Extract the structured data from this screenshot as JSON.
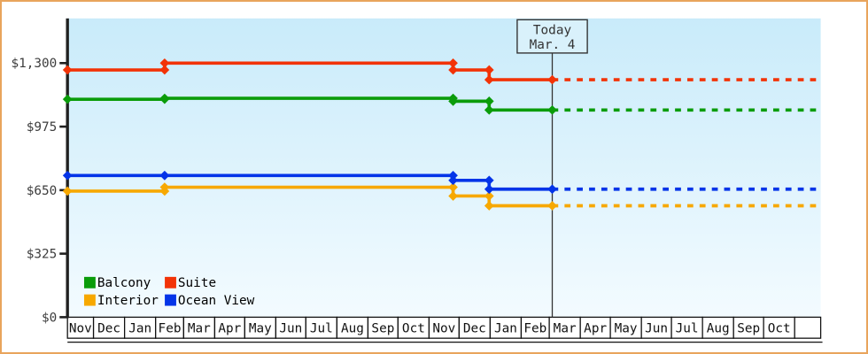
{
  "chart_data": {
    "type": "line",
    "description": "Cruise cabin price history by category with forecast after today",
    "currency": "$",
    "y_axis": {
      "tick_values": [
        0,
        325,
        650,
        975,
        1300
      ],
      "tick_labels": [
        "$0",
        "$325",
        "$650",
        "$975",
        "$1,300"
      ],
      "ylim": [
        0,
        1525
      ],
      "grid": false
    },
    "x_axis": {
      "month_labels": [
        "Nov",
        "Dec",
        "Jan",
        "Feb",
        "Mar",
        "Apr",
        "May",
        "Jun",
        "Jul",
        "Aug",
        "Sep",
        "Oct",
        "Nov",
        "Dec",
        "Jan",
        "Feb",
        "Mar",
        "Apr",
        "May",
        "Jun",
        "Jul",
        "Aug",
        "Sep",
        "Oct",
        ""
      ],
      "month_days": [
        30,
        31,
        31,
        28,
        31,
        30,
        31,
        30,
        31,
        31,
        30,
        31,
        30,
        31,
        31,
        28,
        31,
        30,
        31,
        30,
        31,
        31,
        30,
        31,
        26
      ],
      "start_day": 5
    },
    "today": {
      "label_line1": "Today",
      "label_line2": "Mar. 4",
      "month_index": 16,
      "day": 4
    },
    "series": [
      {
        "name": "Interior",
        "color": "#f7a800",
        "points": [
          {
            "month_index": 0,
            "day": 5,
            "price": 645
          },
          {
            "month_index": 3,
            "day": 10,
            "price": 665
          },
          {
            "month_index": 12,
            "day": 25,
            "price": 620
          },
          {
            "month_index": 13,
            "day": 31,
            "price": 570
          }
        ],
        "forecast_price": 570
      },
      {
        "name": "Ocean View",
        "color": "#0434e8",
        "points": [
          {
            "month_index": 0,
            "day": 5,
            "price": 725
          },
          {
            "month_index": 3,
            "day": 10,
            "price": 725
          },
          {
            "month_index": 12,
            "day": 25,
            "price": 700
          },
          {
            "month_index": 13,
            "day": 31,
            "price": 655
          }
        ],
        "forecast_price": 655
      },
      {
        "name": "Balcony",
        "color": "#0a9c0a",
        "points": [
          {
            "month_index": 0,
            "day": 5,
            "price": 1115
          },
          {
            "month_index": 3,
            "day": 10,
            "price": 1120
          },
          {
            "month_index": 12,
            "day": 25,
            "price": 1105
          },
          {
            "month_index": 13,
            "day": 31,
            "price": 1060
          }
        ],
        "forecast_price": 1060
      },
      {
        "name": "Suite",
        "color": "#f23307",
        "points": [
          {
            "month_index": 0,
            "day": 5,
            "price": 1265
          },
          {
            "month_index": 3,
            "day": 10,
            "price": 1300
          },
          {
            "month_index": 12,
            "day": 25,
            "price": 1265
          },
          {
            "month_index": 13,
            "day": 31,
            "price": 1215
          }
        ],
        "forecast_price": 1215
      }
    ],
    "legend": {
      "columns": 2,
      "entries": [
        {
          "label": "Balcony",
          "color": "#0a9c0a"
        },
        {
          "label": "Suite",
          "color": "#f23307"
        },
        {
          "label": "Interior",
          "color": "#f7a800"
        },
        {
          "label": "Ocean View",
          "color": "#0434e8"
        }
      ]
    },
    "style_colors": {
      "frame_border": "#e9a45c",
      "plot_bg_top": "#c9ebfa",
      "plot_bg_bottom": "#f3fbff",
      "axis": "#202020",
      "month_box_border": "#111111",
      "today_line": "#333333"
    }
  }
}
